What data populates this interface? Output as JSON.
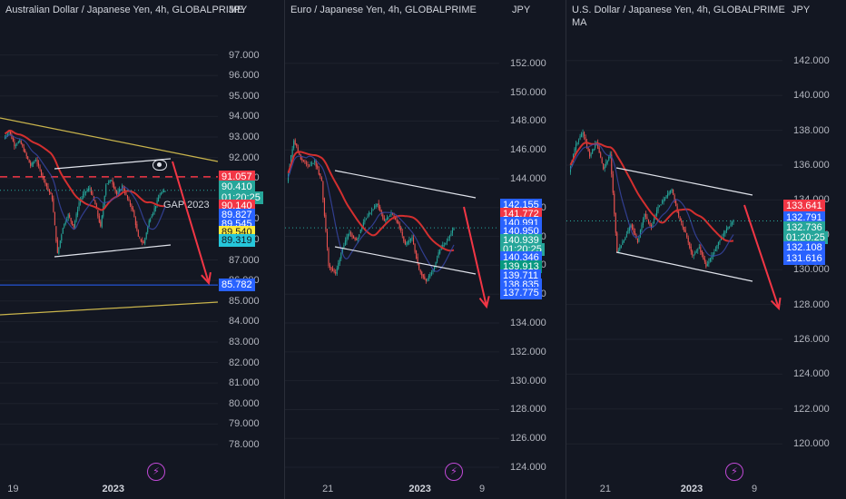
{
  "chart_data": [
    {
      "type": "candlestick",
      "title": "Australian Dollar / Japanese Yen, 4h, GLOBALPRIME",
      "currency": "JPY",
      "ylim": [
        77.2,
        98.0
      ],
      "y_ticks": [
        "97.000",
        "96.000",
        "95.000",
        "94.000",
        "93.000",
        "92.000",
        "91.000",
        "90.000",
        "89.000",
        "88.000",
        "87.000",
        "86.000",
        "85.000",
        "84.000",
        "83.000",
        "82.000",
        "81.000",
        "80.000",
        "79.000",
        "78.000"
      ],
      "x_ticks": [
        {
          "label": "19",
          "pos": 0.06,
          "bold": false
        },
        {
          "label": "2023",
          "pos": 0.52,
          "bold": true
        }
      ],
      "price_labels": [
        {
          "value": "91.057",
          "y": 91.057,
          "bg": "#f23645",
          "dark": false
        },
        {
          "value": "90.410",
          "y": 90.55,
          "bg": "#26a69a",
          "dark": false
        },
        {
          "value": "01:20:25",
          "y": 90.05,
          "bg": "#26a69a",
          "dark": false
        },
        {
          "value": "90.140",
          "y": 89.62,
          "bg": "#f23645",
          "dark": false
        },
        {
          "value": "89.827",
          "y": 89.18,
          "bg": "#2962ff",
          "dark": false
        },
        {
          "value": "89.545",
          "y": 88.77,
          "bg": "#2962ff",
          "dark": false
        },
        {
          "value": "89.540",
          "y": 88.37,
          "bg": "#ffeb3b",
          "dark": true
        },
        {
          "value": "89.319",
          "y": 87.95,
          "bg": "#26c6da",
          "dark": true
        },
        {
          "value": "85.782",
          "y": 85.782,
          "bg": "#2962ff",
          "dark": false
        }
      ],
      "annotations": [
        {
          "text": "GAP 2023",
          "y": 89.7
        }
      ],
      "path": [
        92.9,
        93.3,
        92.6,
        92.8,
        92.2,
        91.6,
        91.9,
        91.2,
        90.6,
        90.0,
        87.3,
        88.6,
        89.2,
        88.6,
        89.8,
        90.3,
        90.5,
        89.7,
        88.6,
        90.7,
        90.9,
        90.2,
        90.6,
        90.0,
        89.4,
        88.1,
        87.8,
        88.9,
        89.5,
        90.2,
        90.4
      ]
    },
    {
      "type": "candlestick",
      "title": "Euro / Japanese Yen, 4h, GLOBALPRIME",
      "currency": "JPY",
      "ylim": [
        123.5,
        154.0
      ],
      "y_ticks": [
        "152.000",
        "150.000",
        "148.000",
        "146.000",
        "144.000",
        "142.000",
        "140.000",
        "138.000",
        "136.000",
        "134.000",
        "132.000",
        "130.000",
        "128.000",
        "126.000",
        "124.000"
      ],
      "x_ticks": [
        {
          "label": "21",
          "pos": 0.2,
          "bold": false
        },
        {
          "label": "2023",
          "pos": 0.63,
          "bold": true
        },
        {
          "label": "9",
          "pos": 0.92,
          "bold": false
        }
      ],
      "price_labels": [
        {
          "value": "142.155",
          "y": 142.155,
          "bg": "#2962ff",
          "dark": false
        },
        {
          "value": "141.772",
          "y": 141.55,
          "bg": "#f23645",
          "dark": false
        },
        {
          "value": "140.991",
          "y": 140.95,
          "bg": "#2962ff",
          "dark": false
        },
        {
          "value": "140.950",
          "y": 140.35,
          "bg": "#2962ff",
          "dark": false
        },
        {
          "value": "140.939",
          "y": 139.72,
          "bg": "#26a69a",
          "dark": false
        },
        {
          "value": "01:20:25",
          "y": 139.12,
          "bg": "#26a69a",
          "dark": false
        },
        {
          "value": "140.346",
          "y": 138.5,
          "bg": "#2962ff",
          "dark": false
        },
        {
          "value": "139.913",
          "y": 137.88,
          "bg": "#089981",
          "dark": false
        },
        {
          "value": "139.711",
          "y": 137.28,
          "bg": "#2962ff",
          "dark": false
        },
        {
          "value": "138.835",
          "y": 136.66,
          "bg": "#2962ff",
          "dark": false
        },
        {
          "value": "137.775",
          "y": 136.05,
          "bg": "#2962ff",
          "dark": false
        }
      ],
      "annotations": [],
      "path": [
        143.8,
        146.7,
        145.4,
        144.9,
        145.2,
        143.8,
        138.0,
        137.4,
        139.2,
        140.3,
        139.7,
        141.0,
        141.7,
        142.3,
        141.0,
        141.6,
        140.9,
        139.4,
        139.9,
        137.7,
        136.9,
        137.7,
        139.1,
        139.7,
        140.6
      ]
    },
    {
      "type": "candlestick",
      "title": "U.S. Dollar / Japanese Yen, 4h, GLOBALPRIME",
      "subtitle": "MA",
      "currency": "JPY",
      "ylim": [
        118.5,
        143.5
      ],
      "y_ticks": [
        "142.000",
        "140.000",
        "138.000",
        "136.000",
        "134.000",
        "132.000",
        "130.000",
        "128.000",
        "126.000",
        "124.000",
        "122.000",
        "120.000"
      ],
      "x_ticks": [
        {
          "label": "21",
          "pos": 0.18,
          "bold": false
        },
        {
          "label": "2023",
          "pos": 0.58,
          "bold": true
        },
        {
          "label": "9",
          "pos": 0.87,
          "bold": false
        }
      ],
      "price_labels": [
        {
          "value": "133.641",
          "y": 133.641,
          "bg": "#f23645",
          "dark": false
        },
        {
          "value": "132.791",
          "y": 133.0,
          "bg": "#2962ff",
          "dark": false
        },
        {
          "value": "132.736",
          "y": 132.4,
          "bg": "#26a69a",
          "dark": false
        },
        {
          "value": "01:20:25",
          "y": 131.84,
          "bg": "#26a69a",
          "dark": false
        },
        {
          "value": "132.108",
          "y": 131.24,
          "bg": "#2962ff",
          "dark": false
        },
        {
          "value": "131.616",
          "y": 130.64,
          "bg": "#2962ff",
          "dark": false
        }
      ],
      "annotations": [],
      "path": [
        135.6,
        137.2,
        137.9,
        136.5,
        137.3,
        135.8,
        136.6,
        131.0,
        131.7,
        132.6,
        131.6,
        133.2,
        132.4,
        133.6,
        134.1,
        134.6,
        133.0,
        132.1,
        130.8,
        131.3,
        130.2,
        130.9,
        131.7,
        132.3,
        132.8
      ]
    }
  ]
}
